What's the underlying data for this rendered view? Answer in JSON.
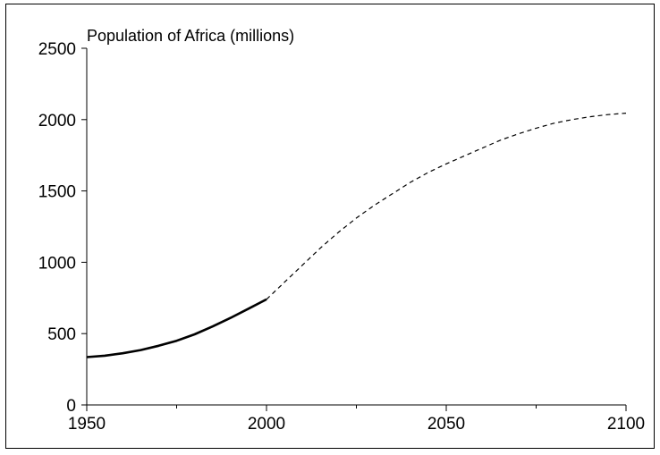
{
  "chart_data": {
    "type": "line",
    "title": "Population of Africa (millions)",
    "xlabel": "",
    "ylabel": "",
    "xlim": [
      1950,
      2100
    ],
    "ylim": [
      0,
      2500
    ],
    "x_ticks": [
      1950,
      2000,
      2050,
      2100
    ],
    "x_minor_ticks": [
      1975,
      2025,
      2075
    ],
    "y_ticks": [
      0,
      500,
      1000,
      1500,
      2000,
      2500
    ],
    "grid": false,
    "legend": "none",
    "series": [
      {
        "style": "solid",
        "color": "#000000",
        "x": [
          1950,
          1955,
          1960,
          1965,
          1970,
          1975,
          1980,
          1985,
          1990,
          1995,
          2000
        ],
        "y": [
          335,
          345,
          362,
          385,
          415,
          450,
          495,
          550,
          610,
          675,
          740
        ]
      },
      {
        "style": "dashed",
        "color": "#000000",
        "x": [
          2000,
          2005,
          2010,
          2015,
          2020,
          2025,
          2030,
          2035,
          2040,
          2045,
          2050,
          2055,
          2060,
          2065,
          2070,
          2075,
          2080,
          2085,
          2090,
          2095,
          2100
        ],
        "y": [
          740,
          860,
          980,
          1100,
          1210,
          1310,
          1400,
          1480,
          1560,
          1630,
          1690,
          1745,
          1800,
          1855,
          1900,
          1940,
          1975,
          2000,
          2020,
          2035,
          2045
        ]
      }
    ]
  }
}
